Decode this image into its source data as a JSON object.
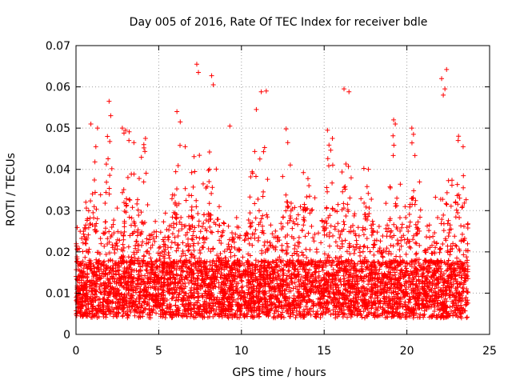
{
  "chart_data": {
    "type": "scatter",
    "title": "Day 005 of 2016, Rate Of TEC Index for receiver bdle",
    "xlabel": "GPS time / hours",
    "ylabel": "ROTI / TECUs",
    "xlim": [
      0,
      25
    ],
    "ylim": [
      0,
      0.07
    ],
    "xticks": [
      "0",
      "5",
      "10",
      "15",
      "20",
      "25"
    ],
    "yticks": [
      "0",
      "0.01",
      "0.02",
      "0.03",
      "0.04",
      "0.05",
      "0.06",
      "0.07"
    ],
    "grid": true,
    "marker": "+",
    "color": "#ff0000",
    "series": [
      {
        "name": "",
        "x": [
          7.3,
          7.4,
          8.2,
          8.3,
          22.4,
          22.1,
          22.3,
          22.2,
          16.2,
          16.5,
          11.2,
          11.5,
          10.9,
          6.1,
          6.3,
          6.6,
          2.0,
          2.1,
          1.9,
          3.0,
          3.2,
          3.5,
          4.1,
          4.2,
          2.8,
          2.9,
          19.2,
          19.3,
          20.3,
          20.4,
          15.2,
          15.5,
          12.7,
          12.8,
          23.1,
          23.4,
          9.3,
          0.9,
          1.2,
          1.3
        ],
        "y": [
          0.0655,
          0.0635,
          0.0627,
          0.0605,
          0.0642,
          0.062,
          0.0595,
          0.058,
          0.0595,
          0.0588,
          0.0588,
          0.059,
          0.0545,
          0.054,
          0.0515,
          0.0455,
          0.0565,
          0.053,
          0.048,
          0.0495,
          0.047,
          0.0465,
          0.046,
          0.0475,
          0.05,
          0.0488,
          0.052,
          0.051,
          0.05,
          0.0485,
          0.0495,
          0.0475,
          0.0498,
          0.0465,
          0.047,
          0.0455,
          0.0505,
          0.051,
          0.0455,
          0.05
        ]
      }
    ]
  }
}
